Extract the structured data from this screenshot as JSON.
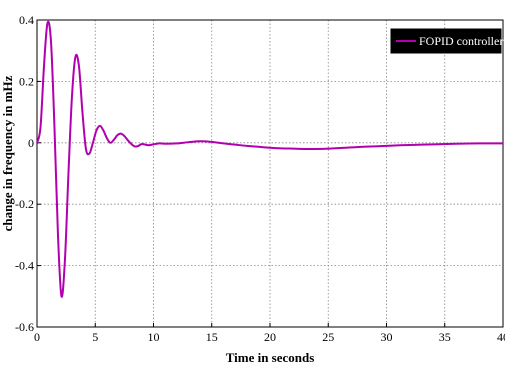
{
  "chart_data": {
    "type": "line",
    "title": "",
    "xlabel": "Time in seconds",
    "ylabel": "change in frequency in mHz",
    "xlim": [
      0,
      40
    ],
    "ylim": [
      -0.6,
      0.4
    ],
    "xticks": [
      0,
      5,
      10,
      15,
      20,
      25,
      30,
      35,
      40
    ],
    "yticks": [
      -0.6,
      -0.4,
      -0.2,
      0,
      0.2,
      0.4
    ],
    "xtick_labels": [
      "0",
      "5",
      "10",
      "15",
      "20",
      "25",
      "30",
      "35",
      "40"
    ],
    "ytick_labels": [
      "-0.6",
      "-0.4",
      "-0.2",
      "0",
      "0.2",
      "0.4"
    ],
    "grid": true,
    "legend_position": "top-right",
    "series": [
      {
        "name": "FOPID controller",
        "color": "#b000b0",
        "x": [
          0,
          0.3,
          0.6,
          0.9,
          1.2,
          1.5,
          1.8,
          2.1,
          2.4,
          2.7,
          3.0,
          3.3,
          3.6,
          3.9,
          4.2,
          4.5,
          4.8,
          5.1,
          5.4,
          5.7,
          6.0,
          6.3,
          6.6,
          6.9,
          7.2,
          7.5,
          7.8,
          8.1,
          8.4,
          8.7,
          9.0,
          9.3,
          9.6,
          10.0,
          10.5,
          11.0,
          12.0,
          13.0,
          14.0,
          15.0,
          16.0,
          17.0,
          18.0,
          19.0,
          20.0,
          21.0,
          22.0,
          23.0,
          24.0,
          25.0,
          26.0,
          27.0,
          28.0,
          30.0,
          32.0,
          34.0,
          36.0,
          38.0,
          40.0
        ],
        "y": [
          0,
          0.05,
          0.25,
          0.39,
          0.33,
          0.05,
          -0.3,
          -0.5,
          -0.38,
          -0.1,
          0.15,
          0.28,
          0.25,
          0.1,
          -0.02,
          -0.035,
          0.0,
          0.04,
          0.055,
          0.04,
          0.015,
          0.0,
          0.01,
          0.025,
          0.03,
          0.022,
          0.008,
          -0.004,
          -0.012,
          -0.01,
          -0.004,
          -0.006,
          -0.008,
          -0.005,
          -0.002,
          -0.003,
          -0.002,
          0.002,
          0.005,
          0.003,
          -0.002,
          -0.006,
          -0.01,
          -0.013,
          -0.016,
          -0.018,
          -0.019,
          -0.02,
          -0.02,
          -0.019,
          -0.017,
          -0.015,
          -0.013,
          -0.01,
          -0.007,
          -0.005,
          -0.003,
          -0.002,
          -0.002
        ]
      }
    ]
  }
}
